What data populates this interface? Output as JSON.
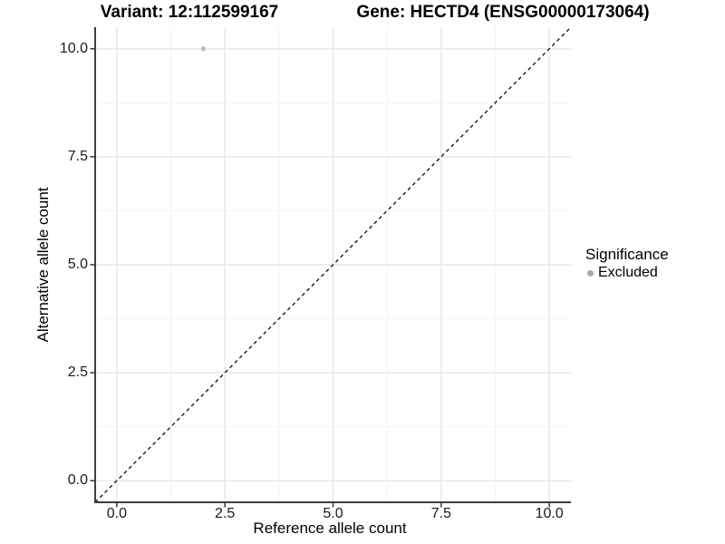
{
  "titles": {
    "variant": "Variant: 12:112599167",
    "gene": "Gene: HECTD4 (ENSG00000173064)"
  },
  "chart_data": {
    "type": "scatter",
    "title_left": "Variant: 12:112599167",
    "title_right": "Gene: HECTD4 (ENSG00000173064)",
    "xlabel": "Reference allele count",
    "ylabel": "Alternative allele count",
    "xlim": [
      -0.5,
      10.5
    ],
    "ylim": [
      -0.5,
      10.5
    ],
    "x_tick_values": [
      0,
      2.5,
      5,
      7.5,
      10
    ],
    "x_tick_labels": [
      "0.0",
      "2.5",
      "5.0",
      "7.5",
      "10.0"
    ],
    "y_tick_values": [
      0,
      2.5,
      5,
      7.5,
      10
    ],
    "y_tick_labels": [
      "0.0",
      "2.5",
      "5.0",
      "7.5",
      "10.0"
    ],
    "minor_tick_values": [
      1.25,
      3.75,
      6.25,
      8.75
    ],
    "grid": "major+minor",
    "legend_position": "right",
    "series": [
      {
        "name": "Excluded",
        "marker": "circle",
        "color": "#b9b9b9",
        "points": [
          {
            "x": 2,
            "y": 10
          }
        ]
      }
    ],
    "reference_line": {
      "slope": 1,
      "intercept": 0,
      "style": "dashed",
      "color": "#000000"
    }
  },
  "legend": {
    "title": "Significance",
    "items": [
      {
        "label": "Excluded",
        "swatch_color": "#a9a9a9"
      }
    ]
  },
  "colors": {
    "background": "#ffffff",
    "grid_major": "#e6e6e6",
    "grid_minor": "#f3f3f3",
    "axis_line": "#3f3f3f",
    "tick_mark": "#333333",
    "tick_text": "#1a1a1a",
    "point": "#b9b9b9"
  }
}
